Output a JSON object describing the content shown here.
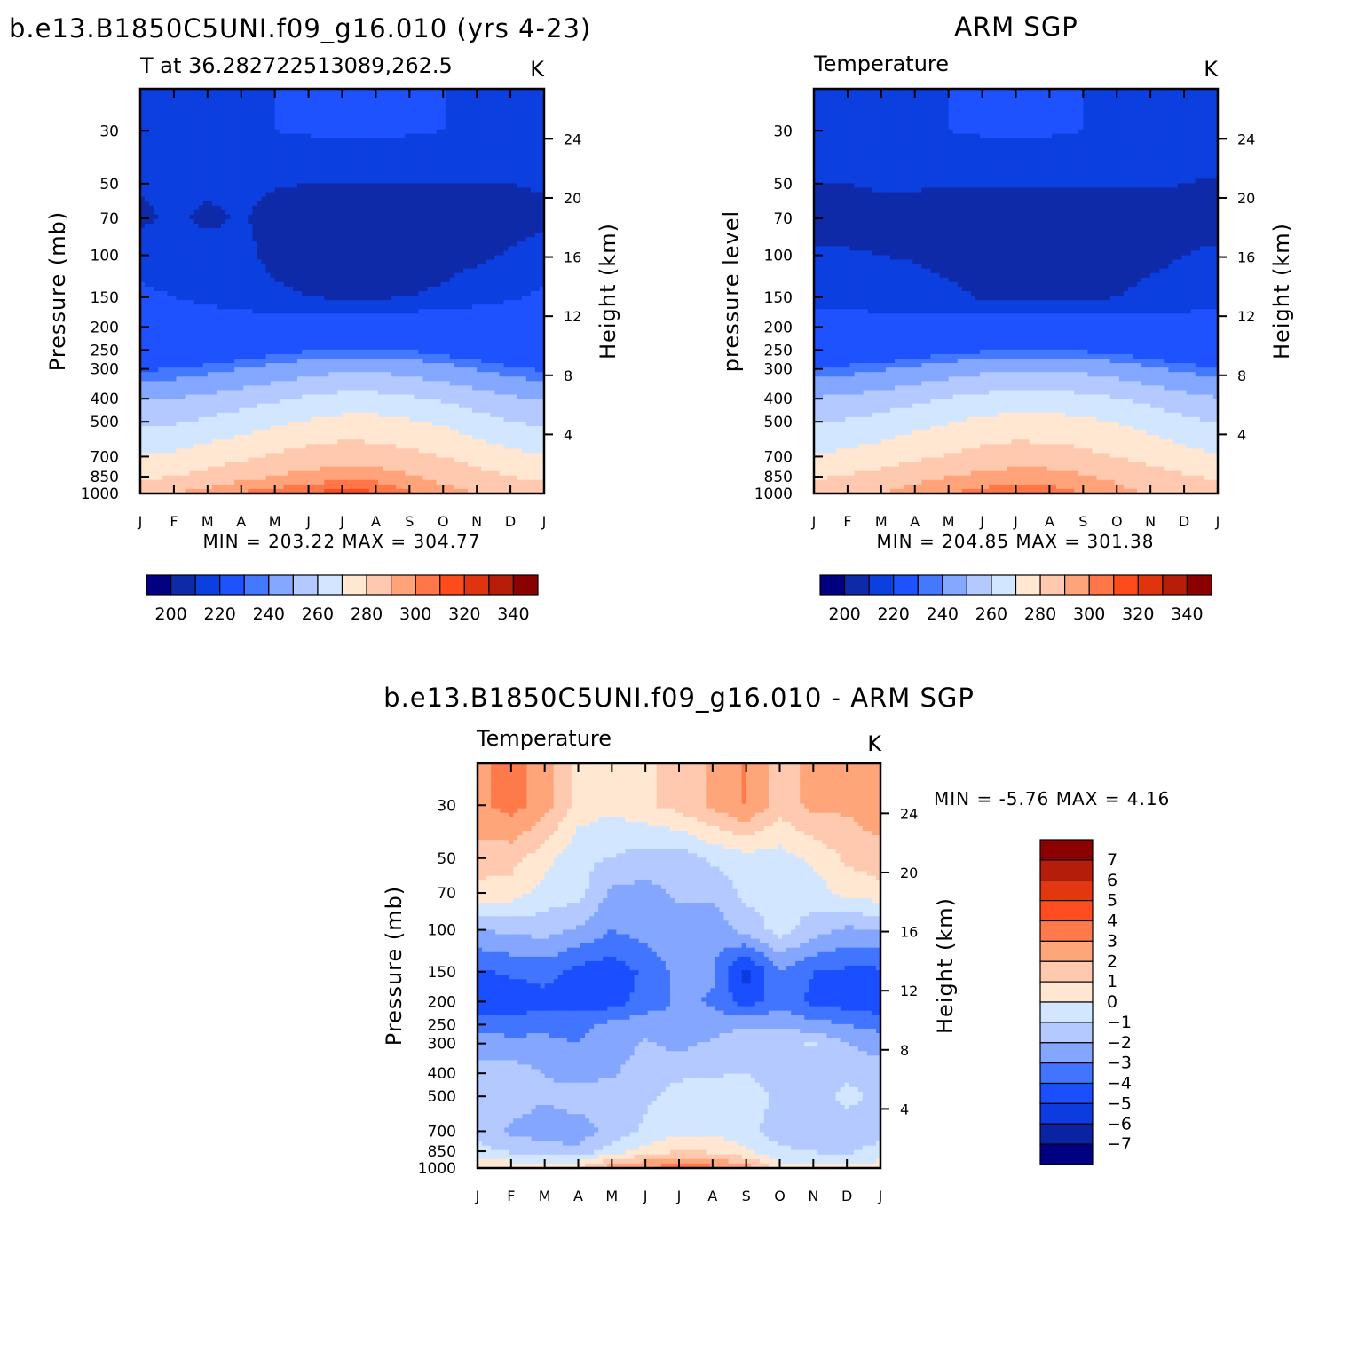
{
  "palette": {
    "t": [
      "#000080",
      "#0f2aa8",
      "#0c3fe0",
      "#1e52ff",
      "#4479ff",
      "#84a7ff",
      "#b3c9ff",
      "#d3e6ff",
      "#ffe7d2",
      "#ffc9b0",
      "#ffa37a",
      "#ff7648",
      "#ff4b1c",
      "#e0340e",
      "#b71e0a",
      "#8b0000"
    ],
    "d": [
      "#000080",
      "#0a23a3",
      "#0c3be0",
      "#1a4fff",
      "#4275ff",
      "#84a6ff",
      "#b3c9ff",
      "#d3e6ff",
      "#ffe7d2",
      "#ffc9b0",
      "#ffa57a",
      "#ff7a4a",
      "#ff4d1f",
      "#e33712",
      "#b41d0a",
      "#8b0000"
    ]
  },
  "months": [
    "J",
    "F",
    "M",
    "A",
    "M",
    "J",
    "J",
    "A",
    "S",
    "O",
    "N",
    "D",
    "J"
  ],
  "pressure_ticks": [
    "30",
    "50",
    "70",
    "100",
    "150",
    "200",
    "250",
    "300",
    "400",
    "500",
    "700",
    "850",
    "1000"
  ],
  "height_ticks": [
    "4",
    "8",
    "12",
    "16",
    "20",
    "24"
  ],
  "panels": [
    {
      "id": "model",
      "title": "b.e13.B1850C5UNI.f09_g16.010 (yrs 4-23)",
      "left_string": "T at 36.282722513089,262.5",
      "right_string": "K",
      "ylabel": "Pressure (mb)",
      "y2label": "Height (km)",
      "stat_text": "MIN = 203.22 MAX = 304.77",
      "colorbar_labels": [
        "200",
        "220",
        "240",
        "260",
        "280",
        "300",
        "320",
        "340"
      ]
    },
    {
      "id": "obs",
      "title": "ARM SGP",
      "left_string": "Temperature",
      "right_string": "K",
      "ylabel": "pressure level",
      "y2label": "Height (km)",
      "stat_text": "MIN = 204.85 MAX = 301.38",
      "colorbar_labels": [
        "200",
        "220",
        "240",
        "260",
        "280",
        "300",
        "320",
        "340"
      ]
    },
    {
      "id": "diff",
      "title": "b.e13.B1850C5UNI.f09_g16.010 - ARM SGP",
      "left_string": "Temperature",
      "right_string": "K",
      "ylabel": "Pressure (mb)",
      "y2label": "Height (km)",
      "stat_text": "MIN = -5.76 MAX = 4.16",
      "colorbar_labels": [
        "7",
        "6",
        "5",
        "4",
        "3",
        "2",
        "1",
        "0",
        "-1",
        "-2",
        "-3",
        "-4",
        "-5",
        "-6",
        "-7"
      ]
    }
  ],
  "chart_data": [
    {
      "type": "heatmap",
      "title": "b.e13.B1850C5UNI.f09_g16.010 (yrs 4-23)",
      "variable": "T at 36.282722513089,262.5",
      "units": "K",
      "xlabel": "",
      "ylabel": "Pressure (mb)",
      "y2label": "Height (km)",
      "x": [
        "J",
        "F",
        "M",
        "A",
        "M",
        "J",
        "J",
        "A",
        "S",
        "O",
        "N",
        "D",
        "J"
      ],
      "y_pressure_mb": [
        1000,
        850,
        700,
        500,
        400,
        300,
        250,
        200,
        150,
        100,
        70,
        50,
        30
      ],
      "y_log_scale": true,
      "ylim": [
        1000,
        20
      ],
      "y2_ticks_km": [
        4,
        8,
        12,
        16,
        20,
        24
      ],
      "contour_levels": [
        195,
        200,
        205,
        210,
        215,
        220,
        225,
        230,
        235,
        240,
        245,
        250,
        255,
        260,
        265,
        270,
        275,
        280,
        285,
        290,
        295,
        300,
        305
      ],
      "colorbar_ticks": [
        200,
        220,
        240,
        260,
        280,
        300,
        320,
        340
      ],
      "min": 203.22,
      "max": 304.77,
      "values": [
        [
          286.0,
          290.0,
          294.0,
          298.0,
          300.5,
          302.5,
          304.0,
          303.0,
          298.0,
          294.0,
          290.0,
          287.0,
          286.0
        ],
        [
          278.0,
          280.0,
          283.0,
          287.0,
          290.5,
          293.0,
          295.0,
          294.5,
          291.0,
          287.0,
          283.0,
          280.0,
          278.0
        ],
        [
          270.5,
          272.0,
          275.0,
          278.0,
          281.5,
          284.0,
          285.5,
          285.0,
          282.5,
          280.0,
          276.0,
          273.0,
          270.5
        ],
        [
          258.0,
          259.0,
          262.0,
          265.0,
          268.0,
          271.0,
          273.0,
          273.0,
          271.0,
          268.5,
          264.0,
          260.5,
          258.0
        ],
        [
          249.0,
          250.0,
          252.5,
          255.5,
          258.5,
          261.5,
          263.5,
          263.5,
          261.5,
          258.5,
          255.0,
          251.5,
          249.0
        ],
        [
          234.0,
          235.0,
          237.0,
          240.0,
          243.0,
          246.0,
          248.0,
          248.0,
          246.0,
          243.0,
          239.5,
          236.0,
          234.0
        ],
        [
          226.0,
          226.5,
          227.5,
          229.5,
          232.0,
          234.5,
          236.0,
          236.0,
          234.5,
          232.0,
          229.5,
          227.0,
          226.0
        ],
        [
          219.0,
          218.5,
          218.0,
          218.0,
          219.0,
          220.0,
          221.0,
          221.0,
          220.5,
          219.5,
          219.5,
          219.0,
          219.0
        ],
        [
          216.0,
          215.0,
          214.0,
          212.5,
          211.0,
          210.0,
          209.5,
          209.5,
          210.0,
          211.0,
          213.0,
          214.5,
          216.0
        ],
        [
          213.0,
          212.5,
          212.0,
          211.5,
          208.5,
          207.5,
          207.0,
          207.0,
          207.5,
          208.0,
          209.0,
          210.5,
          212.0
        ],
        [
          209.0,
          211.0,
          209.0,
          210.5,
          208.0,
          206.5,
          206.0,
          206.0,
          206.0,
          206.5,
          207.0,
          208.0,
          209.0
        ],
        [
          210.5,
          211.0,
          211.0,
          211.0,
          210.5,
          210.0,
          210.0,
          210.0,
          210.0,
          210.0,
          210.0,
          210.0,
          210.5
        ],
        [
          213.0,
          213.5,
          214.0,
          214.5,
          215.0,
          215.5,
          216.0,
          216.0,
          215.5,
          215.0,
          214.5,
          213.5,
          213.0
        ]
      ]
    },
    {
      "type": "heatmap",
      "title": "ARM SGP",
      "variable": "Temperature",
      "units": "K",
      "xlabel": "",
      "ylabel": "pressure level",
      "y2label": "Height (km)",
      "x": [
        "J",
        "F",
        "M",
        "A",
        "M",
        "J",
        "J",
        "A",
        "S",
        "O",
        "N",
        "D",
        "J"
      ],
      "y_pressure_mb": [
        1000,
        850,
        700,
        500,
        400,
        300,
        250,
        200,
        150,
        100,
        70,
        50,
        30
      ],
      "y_log_scale": true,
      "ylim": [
        1000,
        20
      ],
      "y2_ticks_km": [
        4,
        8,
        12,
        16,
        20,
        24
      ],
      "contour_levels": [
        195,
        200,
        205,
        210,
        215,
        220,
        225,
        230,
        235,
        240,
        245,
        250,
        255,
        260,
        265,
        270,
        275,
        280,
        285,
        290,
        295,
        300,
        305
      ],
      "colorbar_ticks": [
        200,
        220,
        240,
        260,
        280,
        300,
        320,
        340
      ],
      "min": 204.85,
      "max": 301.38,
      "values": [
        [
          283.0,
          286.0,
          290.0,
          294.0,
          297.0,
          299.5,
          301.0,
          300.5,
          297.0,
          293.0,
          289.0,
          285.0,
          283.0
        ],
        [
          279.0,
          281.0,
          283.5,
          287.0,
          290.0,
          292.5,
          294.0,
          293.5,
          291.0,
          288.0,
          284.0,
          281.0,
          279.0
        ],
        [
          271.0,
          272.5,
          275.0,
          278.0,
          281.0,
          283.5,
          285.0,
          284.5,
          282.5,
          280.0,
          276.5,
          273.5,
          271.0
        ],
        [
          259.5,
          261.0,
          263.5,
          266.5,
          269.5,
          272.0,
          273.5,
          273.5,
          272.0,
          269.5,
          266.0,
          262.5,
          259.5
        ],
        [
          250.5,
          252.0,
          254.5,
          257.5,
          260.5,
          263.0,
          264.5,
          264.5,
          263.0,
          260.5,
          257.0,
          253.5,
          250.5
        ],
        [
          235.5,
          237.0,
          239.0,
          242.0,
          245.0,
          247.5,
          249.0,
          249.0,
          247.5,
          245.0,
          241.5,
          238.0,
          235.5
        ],
        [
          225.5,
          226.0,
          227.5,
          229.5,
          232.0,
          234.0,
          235.5,
          235.5,
          234.0,
          232.0,
          229.0,
          226.5,
          225.5
        ],
        [
          217.0,
          217.0,
          217.0,
          217.5,
          218.0,
          219.0,
          219.5,
          219.5,
          219.0,
          218.0,
          217.5,
          217.0,
          217.0
        ],
        [
          214.0,
          213.5,
          213.0,
          212.5,
          211.5,
          209.5,
          208.5,
          208.5,
          209.0,
          210.0,
          211.5,
          213.0,
          214.0
        ],
        [
          211.0,
          210.5,
          210.0,
          209.5,
          208.0,
          207.0,
          206.5,
          206.5,
          207.0,
          207.5,
          208.5,
          210.0,
          211.0
        ],
        [
          207.5,
          208.0,
          208.5,
          208.0,
          207.0,
          206.5,
          206.0,
          206.0,
          206.0,
          206.5,
          207.5,
          208.0,
          207.5
        ],
        [
          210.0,
          210.0,
          210.5,
          210.5,
          210.5,
          210.5,
          210.5,
          210.5,
          210.5,
          210.5,
          210.5,
          210.0,
          209.5
        ],
        [
          213.0,
          213.5,
          214.0,
          214.5,
          215.0,
          215.5,
          216.0,
          215.5,
          215.0,
          214.5,
          214.0,
          213.5,
          213.0
        ]
      ]
    },
    {
      "type": "heatmap",
      "title": "b.e13.B1850C5UNI.f09_g16.010 - ARM SGP",
      "variable": "Temperature",
      "units": "K",
      "xlabel": "",
      "ylabel": "Pressure (mb)",
      "y2label": "Height (km)",
      "x": [
        "J",
        "F",
        "M",
        "A",
        "M",
        "J",
        "J",
        "A",
        "S",
        "O",
        "N",
        "D",
        "J"
      ],
      "y_pressure_mb": [
        1000,
        850,
        700,
        500,
        400,
        300,
        250,
        200,
        150,
        100,
        70,
        50,
        30
      ],
      "y_log_scale": true,
      "ylim": [
        1000,
        20
      ],
      "y2_ticks_km": [
        4,
        8,
        12,
        16,
        20,
        24
      ],
      "contour_levels": [
        -7,
        -6,
        -5,
        -4,
        -3,
        -2,
        -1,
        0,
        1,
        2,
        3,
        4,
        5,
        6,
        7
      ],
      "colorbar_ticks": [
        7,
        6,
        5,
        4,
        3,
        2,
        1,
        0,
        -1,
        -2,
        -3,
        -4,
        -5,
        -6,
        -7
      ],
      "min": -5.76,
      "max": 4.16,
      "values": [
        [
          0.5,
          0.8,
          0.7,
          1.2,
          2.5,
          3.2,
          3.6,
          3.3,
          2.6,
          0.5,
          0.6,
          0.4,
          0.5
        ],
        [
          -0.6,
          -1.2,
          -1.5,
          -1.8,
          -0.5,
          0.3,
          1.0,
          0.8,
          0.1,
          -0.8,
          -1.1,
          -1.2,
          -0.6
        ],
        [
          -1.4,
          -2.2,
          -2.5,
          -2.6,
          -1.6,
          -0.8,
          -0.3,
          -0.2,
          -0.6,
          -1.6,
          -1.4,
          -1.6,
          -1.4
        ],
        [
          -1.3,
          -1.4,
          -1.9,
          -1.4,
          -1.6,
          -1.2,
          -0.6,
          -0.5,
          -0.4,
          -1.2,
          -1.5,
          -0.7,
          -1.3
        ],
        [
          -1.6,
          -1.5,
          -2.0,
          -2.4,
          -2.1,
          -1.6,
          -1.2,
          -1.1,
          -1.0,
          -1.5,
          -1.6,
          -1.2,
          -1.6
        ],
        [
          -2.4,
          -2.6,
          -2.8,
          -3.0,
          -2.4,
          -1.9,
          -2.3,
          -1.8,
          -1.2,
          -1.2,
          -0.9,
          -2.0,
          -2.4
        ],
        [
          -3.4,
          -3.6,
          -3.2,
          -3.3,
          -2.7,
          -2.4,
          -2.9,
          -2.6,
          -2.1,
          -2.3,
          -2.6,
          -3.0,
          -3.4
        ],
        [
          -4.7,
          -4.8,
          -4.4,
          -4.6,
          -4.5,
          -3.6,
          -2.8,
          -3.1,
          -4.6,
          -3.3,
          -4.3,
          -4.5,
          -4.7
        ],
        [
          -4.2,
          -3.8,
          -3.6,
          -4.4,
          -4.6,
          -3.8,
          -2.6,
          -2.9,
          -5.5,
          -3.0,
          -4.0,
          -4.2,
          -4.2
        ],
        [
          -2.0,
          -1.8,
          -1.6,
          -2.1,
          -3.0,
          -2.6,
          -2.4,
          -2.7,
          -1.6,
          -0.6,
          -1.5,
          -2.2,
          -2.0
        ],
        [
          0.6,
          0.5,
          -0.4,
          -0.6,
          -2.2,
          -2.3,
          -1.8,
          -1.8,
          -0.7,
          -0.8,
          -0.5,
          0.3,
          0.6
        ],
        [
          1.6,
          1.4,
          0.4,
          -0.8,
          -1.0,
          -1.5,
          -1.6,
          -0.8,
          -0.4,
          -0.4,
          0.2,
          1.2,
          1.6
        ],
        [
          2.7,
          3.4,
          2.5,
          0.6,
          0.2,
          0.8,
          1.4,
          2.2,
          3.1,
          1.4,
          2.3,
          2.2,
          2.7
        ]
      ]
    }
  ]
}
